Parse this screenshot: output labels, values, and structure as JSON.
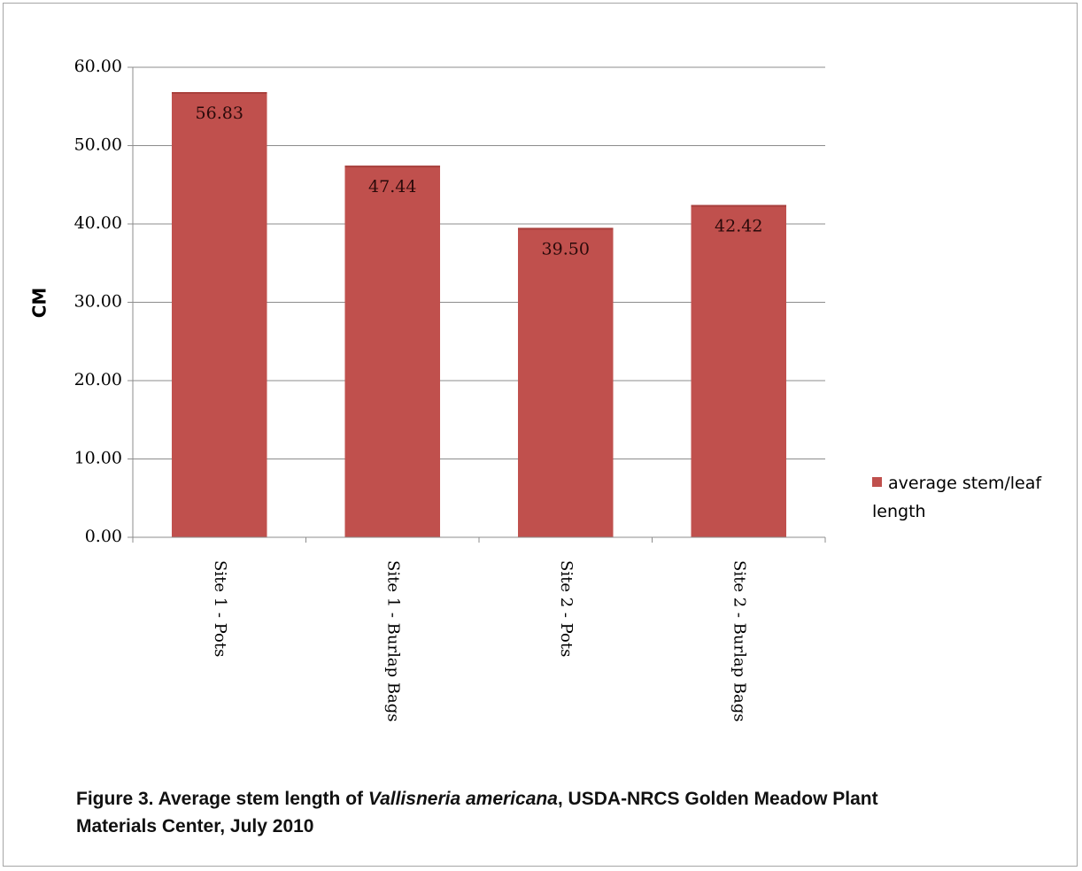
{
  "chart_data": {
    "type": "bar",
    "categories": [
      "Site 1 - Pots",
      "Site 1 - Burlap Bags",
      "Site 2 - Pots",
      "Site 2 - Burlap Bags"
    ],
    "series": [
      {
        "name": "average stem/leaf length",
        "values": [
          56.83,
          47.44,
          39.5,
          42.42
        ],
        "color": "#c0504d"
      }
    ],
    "data_labels": [
      "56.83",
      "47.44",
      "39.50",
      "42.42"
    ],
    "ylabel": "CM",
    "xlabel": "",
    "ylim": [
      0,
      60
    ],
    "yticks": [
      0,
      10,
      20,
      30,
      40,
      50,
      60
    ],
    "ytick_labels": [
      "0.00",
      "10.00",
      "20.00",
      "30.00",
      "40.00",
      "50.00",
      "60.00"
    ],
    "grid": true,
    "legend_position": "right"
  },
  "legend": {
    "label": "average stem/leaf length"
  },
  "caption": {
    "prefix": "Figure 3. Average  stem length of ",
    "species": "Vallisneria americana",
    "suffix": ", USDA-NRCS Golden Meadow Plant Materials Center, July 2010"
  }
}
